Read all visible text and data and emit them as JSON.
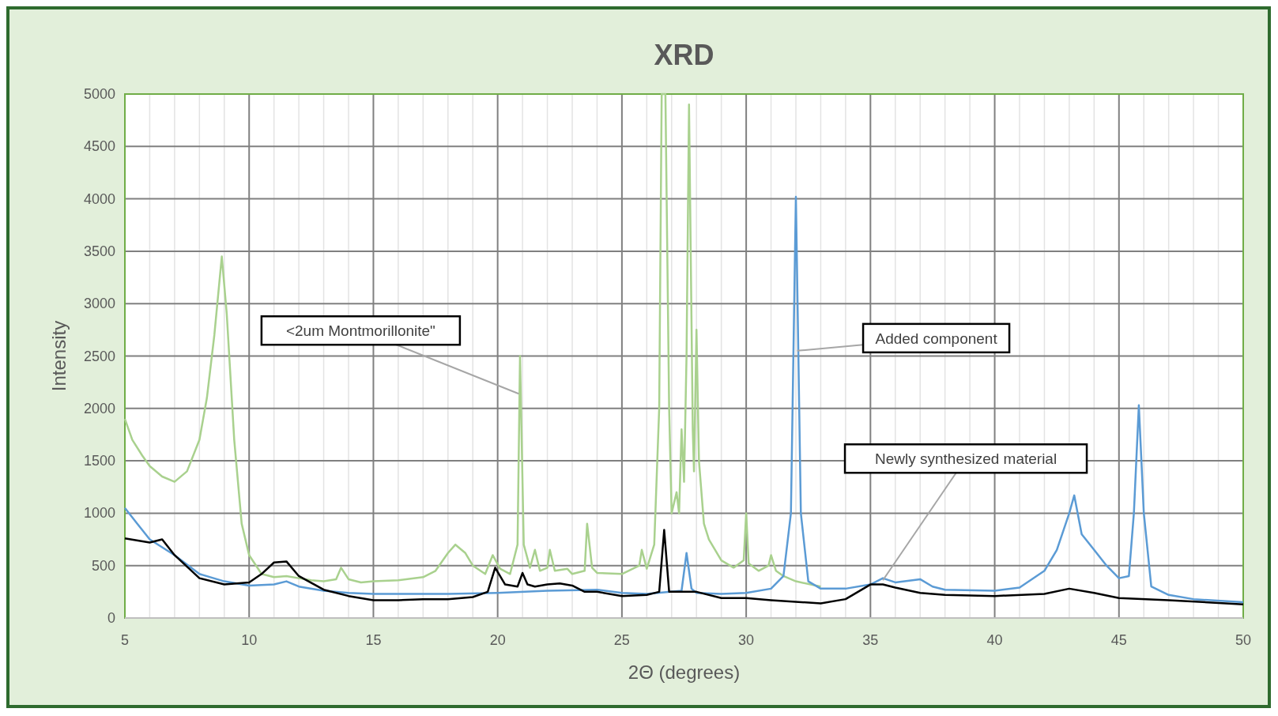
{
  "chart_data": {
    "type": "line",
    "title": "XRD",
    "xlabel": "2Θ (degrees)",
    "ylabel": "Intensity",
    "xlim": [
      5,
      50
    ],
    "ylim": [
      0,
      5000
    ],
    "xticks": [
      5,
      {
        "value": 6,
        "label": null
      },
      {
        "value": 7,
        "label": null
      },
      {
        "value": 8,
        "label": null
      },
      {
        "value": 9,
        "label": null
      },
      10,
      {
        "value": 11,
        "label": null
      },
      {
        "value": 12,
        "label": null
      },
      {
        "value": 13,
        "label": null
      },
      {
        "value": 14,
        "label": null
      },
      15,
      {
        "value": 16,
        "label": null
      },
      {
        "value": 17,
        "label": null
      },
      {
        "value": 18,
        "label": null
      },
      {
        "value": 19,
        "label": null
      },
      20,
      {
        "value": 21,
        "label": null
      },
      {
        "value": 22,
        "label": null
      },
      {
        "value": 23,
        "label": null
      },
      {
        "value": 24,
        "label": null
      },
      25,
      {
        "value": 26,
        "label": null
      },
      {
        "value": 27,
        "label": null
      },
      {
        "value": 28,
        "label": null
      },
      {
        "value": 29,
        "label": null
      },
      30,
      {
        "value": 31,
        "label": null
      },
      {
        "value": 32,
        "label": null
      },
      {
        "value": 33,
        "label": null
      },
      {
        "value": 34,
        "label": null
      },
      35,
      {
        "value": 36,
        "label": null
      },
      {
        "value": 37,
        "label": null
      },
      {
        "value": 38,
        "label": null
      },
      {
        "value": 39,
        "label": null
      },
      40,
      {
        "value": 41,
        "label": null
      },
      {
        "value": 42,
        "label": null
      },
      {
        "value": 43,
        "label": null
      },
      {
        "value": 44,
        "label": null
      },
      45,
      {
        "value": 46,
        "label": null
      },
      {
        "value": 47,
        "label": null
      },
      {
        "value": 48,
        "label": null
      },
      {
        "value": 49,
        "label": null
      },
      50
    ],
    "yticks": [
      0,
      500,
      1000,
      1500,
      2000,
      2500,
      3000,
      3500,
      4000,
      4500,
      5000
    ],
    "grid": true,
    "line_style": "solid",
    "series": [
      {
        "color": "#a9d18e",
        "x": [
          5,
          5.3,
          5.7,
          6,
          6.5,
          7,
          7.5,
          8,
          8.3,
          8.6,
          8.9,
          9.1,
          9.4,
          9.7,
          10,
          10.5,
          11,
          11.5,
          12,
          12.5,
          13,
          13.5,
          13.7,
          14,
          14.5,
          15,
          16,
          17,
          17.5,
          18,
          18.3,
          18.7,
          19,
          19.5,
          19.8,
          20.1,
          20.5,
          20.8,
          20.9,
          21.05,
          21.3,
          21.5,
          21.7,
          22,
          22.1,
          22.3,
          22.8,
          23,
          23.5,
          23.6,
          23.8,
          24,
          25,
          25.7,
          25.8,
          26,
          26.3,
          26.5,
          26.6,
          26.75,
          26.9,
          27,
          27.2,
          27.3,
          27.4,
          27.5,
          27.6,
          27.7,
          27.85,
          27.9,
          28,
          28.1,
          28.3,
          28.5,
          29,
          29.5,
          29.9,
          30,
          30.1,
          30.5,
          30.9,
          31,
          31.2,
          31.5,
          32,
          33
        ],
        "values": [
          1900,
          1700,
          1550,
          1450,
          1350,
          1300,
          1400,
          1700,
          2100,
          2700,
          3450,
          2900,
          1700,
          900,
          600,
          420,
          390,
          400,
          380,
          360,
          350,
          370,
          480,
          370,
          340,
          350,
          360,
          390,
          450,
          620,
          700,
          620,
          500,
          420,
          600,
          470,
          420,
          700,
          2500,
          700,
          480,
          650,
          450,
          480,
          650,
          450,
          470,
          420,
          450,
          900,
          480,
          430,
          420,
          500,
          650,
          470,
          700,
          2000,
          5000,
          5000,
          2000,
          1000,
          1200,
          1000,
          1800,
          1300,
          2500,
          4900,
          1800,
          1400,
          2750,
          1500,
          900,
          750,
          550,
          480,
          550,
          1000,
          520,
          450,
          500,
          600,
          450,
          400,
          350,
          300
        ]
      },
      {
        "color": "#5b9bd5",
        "x": [
          5,
          5.5,
          6,
          7,
          8,
          9,
          10,
          11,
          11.5,
          12,
          13,
          14,
          15,
          16,
          18,
          20,
          22,
          24,
          25,
          26,
          27.4,
          27.6,
          27.8,
          28,
          29,
          30,
          31,
          31.5,
          31.8,
          32,
          32.2,
          32.5,
          33,
          34,
          35,
          35.5,
          36,
          37,
          37.5,
          38,
          40,
          41,
          42,
          42.5,
          43,
          43.2,
          43.5,
          44,
          44.5,
          45,
          45.4,
          45.6,
          45.8,
          46,
          46.3,
          47,
          48,
          50
        ],
        "values": [
          1050,
          900,
          750,
          600,
          420,
          350,
          310,
          320,
          350,
          300,
          260,
          240,
          230,
          230,
          230,
          240,
          260,
          270,
          240,
          230,
          260,
          620,
          280,
          240,
          230,
          240,
          280,
          400,
          1000,
          4020,
          1000,
          350,
          280,
          280,
          320,
          380,
          340,
          370,
          300,
          270,
          260,
          290,
          450,
          650,
          1000,
          1170,
          800,
          650,
          500,
          380,
          400,
          1000,
          2030,
          1000,
          300,
          220,
          180,
          150
        ]
      },
      {
        "color": "#000000",
        "x": [
          5,
          6,
          6.5,
          7,
          8,
          9,
          10,
          10.5,
          11,
          11.5,
          12,
          13,
          14,
          15,
          16,
          17,
          18,
          19,
          19.6,
          19.9,
          20.3,
          20.8,
          21,
          21.2,
          21.5,
          22,
          22.5,
          23,
          23.5,
          24,
          25,
          26,
          26.5,
          26.7,
          26.9,
          28,
          29,
          30,
          31,
          33,
          34,
          34.5,
          35,
          35.5,
          36,
          37,
          38,
          40,
          42,
          43,
          44,
          45,
          47,
          50
        ],
        "values": [
          760,
          720,
          750,
          600,
          380,
          320,
          340,
          420,
          530,
          540,
          400,
          270,
          210,
          170,
          170,
          180,
          180,
          200,
          250,
          480,
          320,
          300,
          430,
          320,
          300,
          320,
          330,
          310,
          250,
          250,
          210,
          220,
          250,
          840,
          250,
          250,
          190,
          190,
          170,
          140,
          180,
          250,
          320,
          320,
          290,
          240,
          220,
          210,
          230,
          280,
          240,
          190,
          170,
          130
        ]
      }
    ],
    "annotations": [
      {
        "text": "<2um Montmorillonite\"",
        "x": 20.85,
        "y": 2140
      },
      {
        "text": "Added component",
        "x": 32.05,
        "y": 2550
      },
      {
        "text": "Newly synthesized material",
        "x": 35.5,
        "y": 360
      }
    ]
  }
}
